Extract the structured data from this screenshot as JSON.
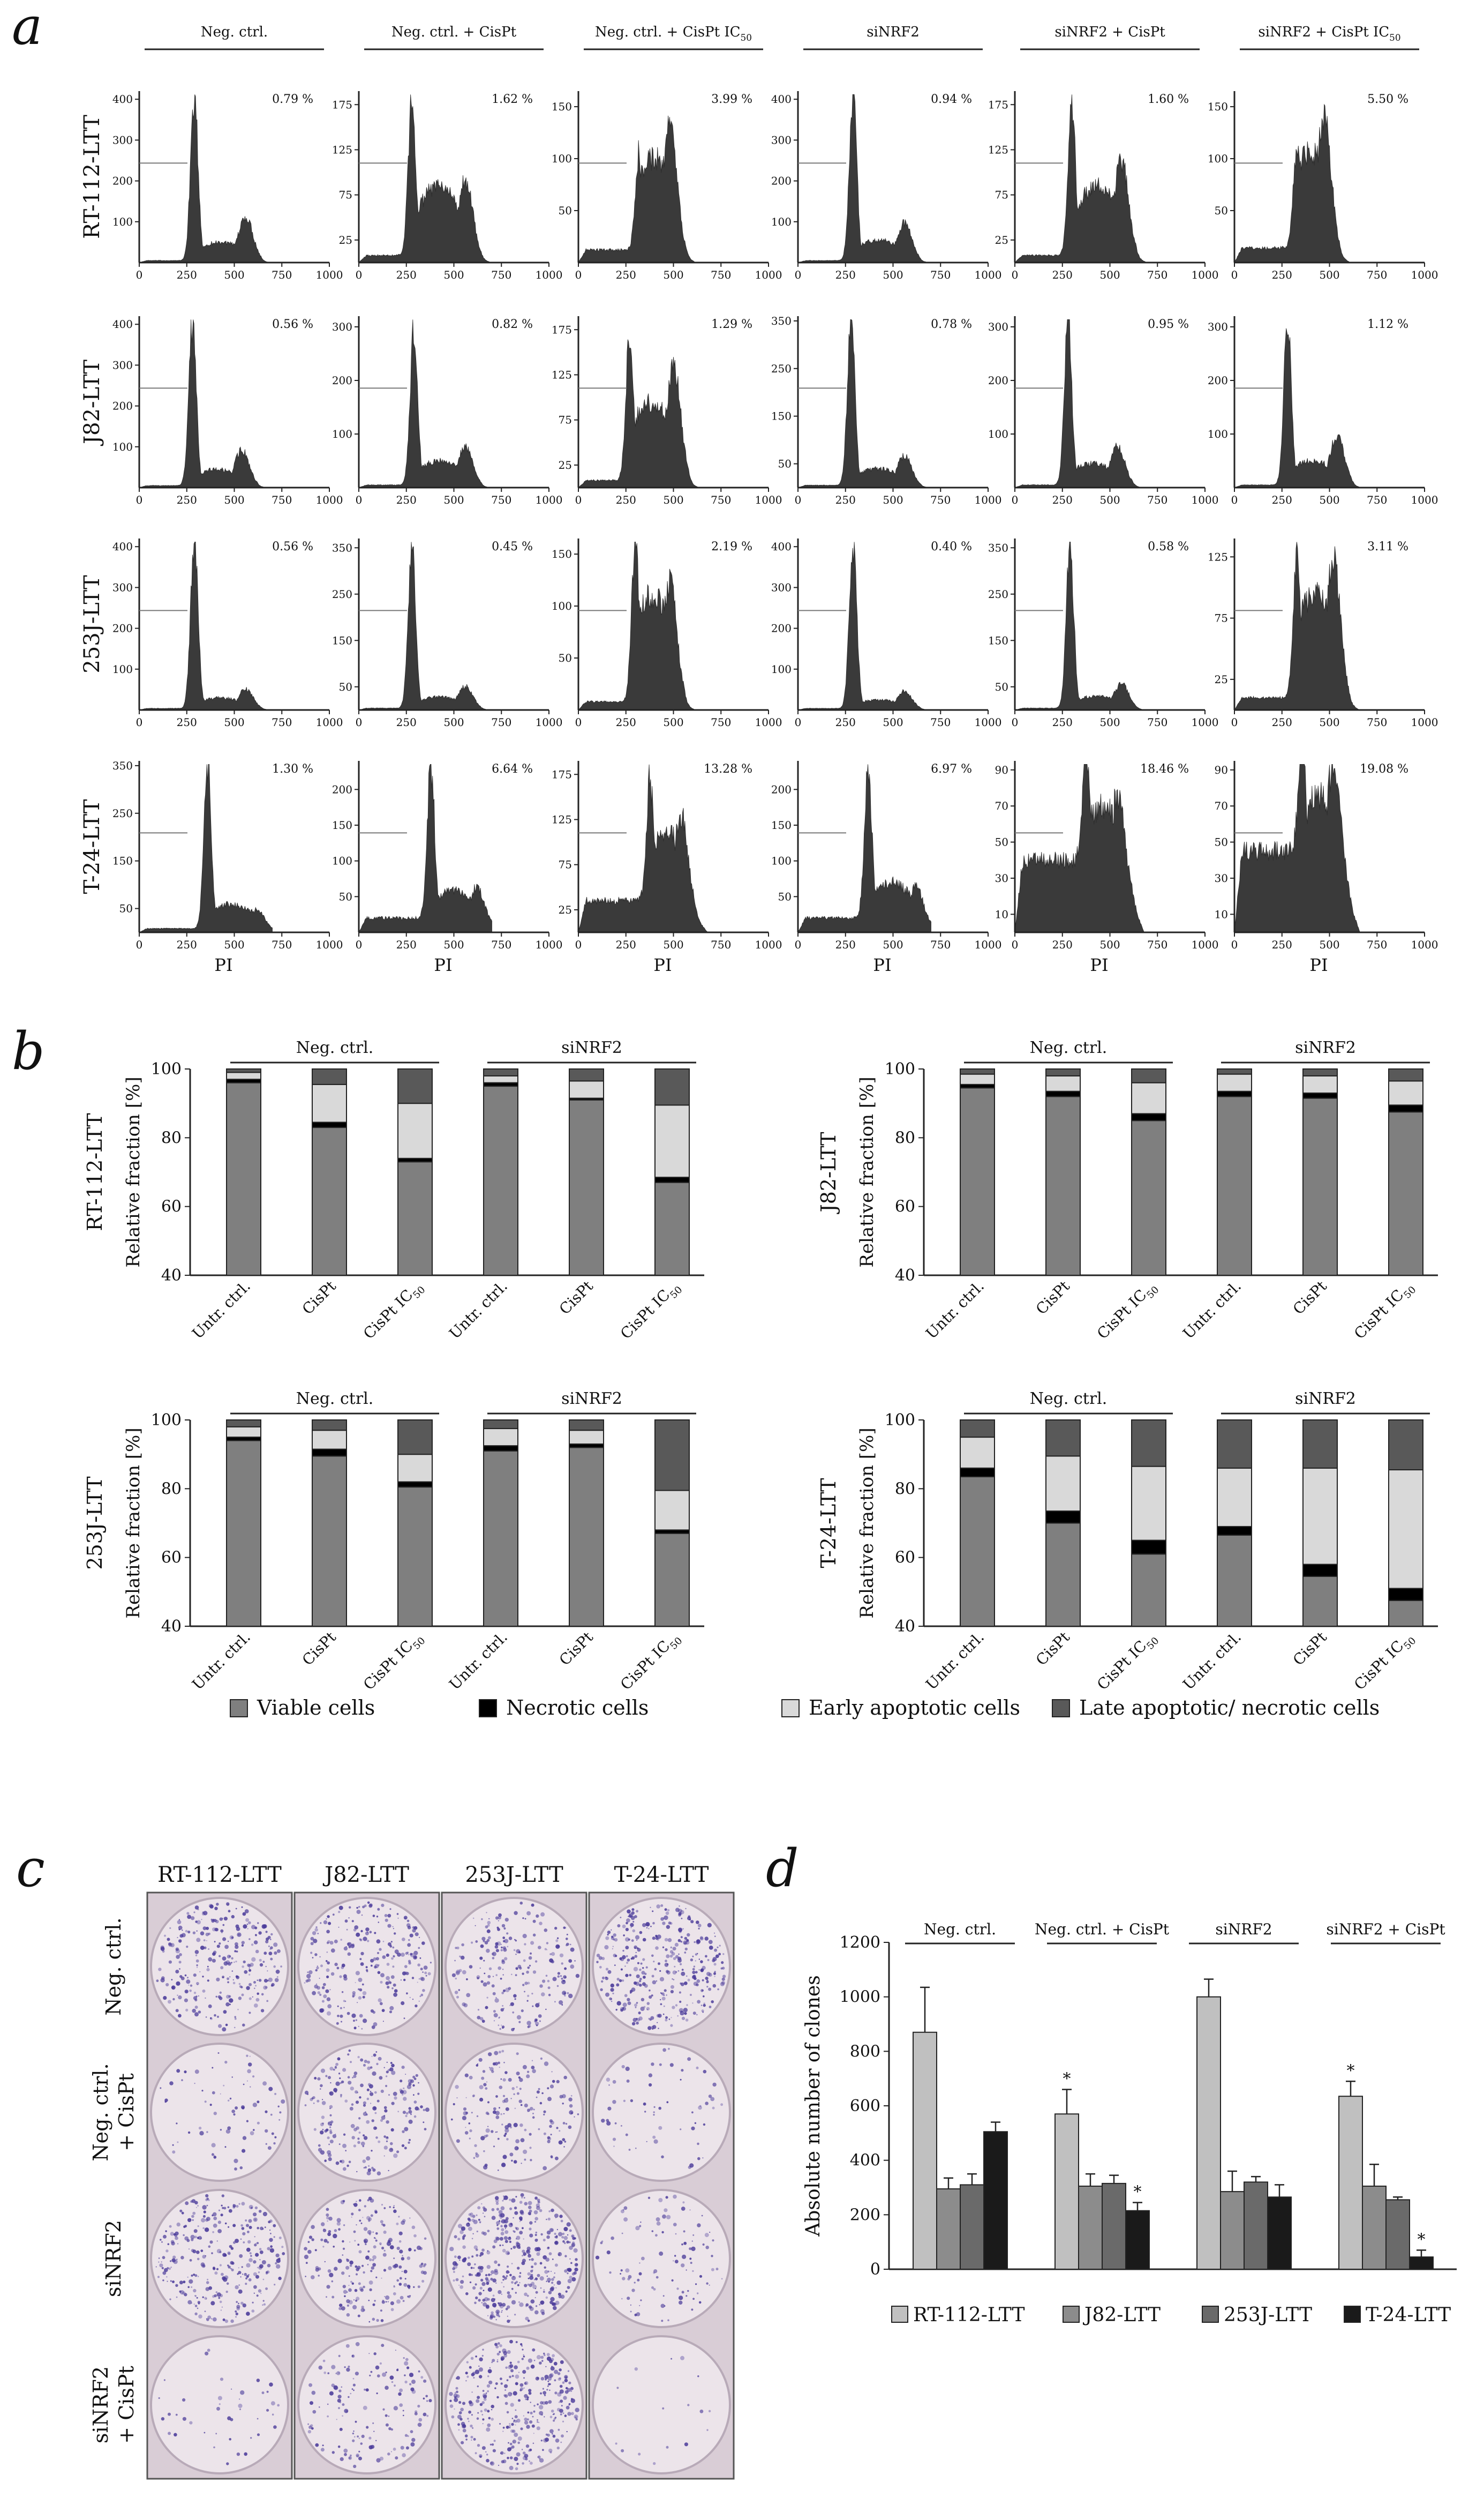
{
  "panel_a": {
    "letter": "a",
    "columns": [
      "Neg. ctrl.",
      "Neg. ctrl. + CisPt",
      "Neg. ctrl. + CisPt IC50",
      "siNRF2",
      "siNRF2 + CisPt",
      "siNRF2 + CisPt IC50"
    ],
    "rows": [
      "RT-112-LTT",
      "J82-LTT",
      "253J-LTT",
      "T-24-LTT"
    ],
    "x_ticks": [
      "0",
      "250",
      "500",
      "750",
      "1000"
    ],
    "x_label": "PI",
    "cells": [
      [
        {
          "pct": "0.79 %",
          "yticks": [
            "400",
            "300",
            "200",
            "100"
          ],
          "ymax": 420,
          "g1": 400,
          "g1pos": 290,
          "g2": 110,
          "g2pos": 560,
          "s": 50,
          "sub": 5
        },
        {
          "pct": "1.62 %",
          "yticks": [
            "175",
            "125",
            "75",
            "25"
          ],
          "ymax": 190,
          "g1": 175,
          "g1pos": 280,
          "g2": 90,
          "g2pos": 560,
          "s": 85,
          "sub": 8
        },
        {
          "pct": "3.99 %",
          "yticks": [
            "150",
            "100",
            "50"
          ],
          "ymax": 165,
          "g1": 95,
          "g1pos": 320,
          "g2": 125,
          "g2pos": 480,
          "s": 100,
          "sub": 12
        },
        {
          "pct": "0.94 %",
          "yticks": [
            "400",
            "300",
            "200",
            "100"
          ],
          "ymax": 420,
          "g1": 400,
          "g1pos": 290,
          "g2": 95,
          "g2pos": 560,
          "s": 55,
          "sub": 5
        },
        {
          "pct": "1.60 %",
          "yticks": [
            "175",
            "125",
            "75",
            "25"
          ],
          "ymax": 190,
          "g1": 175,
          "g1pos": 300,
          "g2": 110,
          "g2pos": 560,
          "s": 85,
          "sub": 8
        },
        {
          "pct": "5.50 %",
          "yticks": [
            "150",
            "100",
            "50"
          ],
          "ymax": 165,
          "g1": 100,
          "g1pos": 330,
          "g2": 135,
          "g2pos": 470,
          "s": 105,
          "sub": 14
        }
      ],
      [
        {
          "pct": "0.56 %",
          "yticks": [
            "400",
            "300",
            "200",
            "100"
          ],
          "ymax": 420,
          "g1": 405,
          "g1pos": 280,
          "g2": 90,
          "g2pos": 540,
          "s": 45,
          "sub": 5
        },
        {
          "pct": "0.82 %",
          "yticks": [
            "300",
            "200",
            "100"
          ],
          "ymax": 320,
          "g1": 295,
          "g1pos": 290,
          "g2": 75,
          "g2pos": 560,
          "s": 50,
          "sub": 5
        },
        {
          "pct": "1.29 %",
          "yticks": [
            "175",
            "125",
            "75",
            "25"
          ],
          "ymax": 190,
          "g1": 165,
          "g1pos": 270,
          "g2": 130,
          "g2pos": 500,
          "s": 95,
          "sub": 8
        },
        {
          "pct": "0.78 %",
          "yticks": [
            "350",
            "250",
            "150",
            "50"
          ],
          "ymax": 360,
          "g1": 345,
          "g1pos": 280,
          "g2": 65,
          "g2pos": 560,
          "s": 40,
          "sub": 5
        },
        {
          "pct": "0.95 %",
          "yticks": [
            "300",
            "200",
            "100"
          ],
          "ymax": 320,
          "g1": 310,
          "g1pos": 280,
          "g2": 75,
          "g2pos": 540,
          "s": 45,
          "sub": 5
        },
        {
          "pct": "1.12 %",
          "yticks": [
            "300",
            "200",
            "100"
          ],
          "ymax": 320,
          "g1": 305,
          "g1pos": 280,
          "g2": 95,
          "g2pos": 540,
          "s": 50,
          "sub": 5
        }
      ],
      [
        {
          "pct": "0.56 %",
          "yticks": [
            "400",
            "300",
            "200",
            "100"
          ],
          "ymax": 420,
          "g1": 405,
          "g1pos": 290,
          "g2": 50,
          "g2pos": 560,
          "s": 30,
          "sub": 4
        },
        {
          "pct": "0.45 %",
          "yticks": [
            "350",
            "250",
            "150",
            "50"
          ],
          "ymax": 370,
          "g1": 355,
          "g1pos": 280,
          "g2": 50,
          "g2pos": 560,
          "s": 28,
          "sub": 4
        },
        {
          "pct": "2.19 %",
          "yticks": [
            "150",
            "100",
            "50"
          ],
          "ymax": 165,
          "g1": 155,
          "g1pos": 300,
          "g2": 120,
          "g2pos": 480,
          "s": 110,
          "sub": 8
        },
        {
          "pct": "0.40 %",
          "yticks": [
            "400",
            "300",
            "200",
            "100"
          ],
          "ymax": 420,
          "g1": 405,
          "g1pos": 290,
          "g2": 45,
          "g2pos": 560,
          "s": 25,
          "sub": 4
        },
        {
          "pct": "0.58 %",
          "yticks": [
            "350",
            "250",
            "150",
            "50"
          ],
          "ymax": 370,
          "g1": 355,
          "g1pos": 290,
          "g2": 55,
          "g2pos": 560,
          "s": 30,
          "sub": 4
        },
        {
          "pct": "3.11 %",
          "yticks": [
            "125",
            "75",
            "25"
          ],
          "ymax": 140,
          "g1": 120,
          "g1pos": 330,
          "g2": 120,
          "g2pos": 520,
          "s": 95,
          "sub": 10
        }
      ],
      [
        {
          "pct": "1.30 %",
          "yticks": [
            "350",
            "250",
            "150",
            "50"
          ],
          "ymax": 360,
          "g1": 345,
          "g1pos": 360,
          "g2": 45,
          "g2pos": 620,
          "s": 60,
          "sub": 8
        },
        {
          "pct": "6.64 %",
          "yticks": [
            "200",
            "150",
            "100",
            "50"
          ],
          "ymax": 240,
          "g1": 220,
          "g1pos": 380,
          "g2": 55,
          "g2pos": 620,
          "s": 60,
          "sub": 20
        },
        {
          "pct": "13.28 %",
          "yticks": [
            "175",
            "125",
            "75",
            "25"
          ],
          "ymax": 190,
          "g1": 145,
          "g1pos": 380,
          "g2": 115,
          "g2pos": 540,
          "s": 110,
          "sub": 35
        },
        {
          "pct": "6.97 %",
          "yticks": [
            "200",
            "150",
            "100",
            "50"
          ],
          "ymax": 240,
          "g1": 220,
          "g1pos": 370,
          "g2": 55,
          "g2pos": 620,
          "s": 70,
          "sub": 20
        },
        {
          "pct": "18.46 %",
          "yticks": [
            "90",
            "70",
            "50",
            "30",
            "10"
          ],
          "ymax": 95,
          "g1": 85,
          "g1pos": 380,
          "g2": 60,
          "g2pos": 540,
          "s": 70,
          "sub": 40
        },
        {
          "pct": "19.08 %",
          "yticks": [
            "90",
            "70",
            "50",
            "30",
            "10"
          ],
          "ymax": 95,
          "g1": 85,
          "g1pos": 360,
          "g2": 75,
          "g2pos": 520,
          "s": 75,
          "sub": 45
        }
      ]
    ]
  },
  "panel_b": {
    "letter": "b",
    "group_labels": [
      "Neg. ctrl.",
      "siNRF2"
    ],
    "categories": [
      "Untr. ctrl.",
      "CisPt",
      "CisPt IC50"
    ],
    "ylabel": "Relative fraction [%]",
    "ylim": [
      40,
      100
    ],
    "yticks": [
      "40",
      "60",
      "80",
      "100"
    ],
    "legend": [
      {
        "label": "Viable cells",
        "color": "#7f7f7f"
      },
      {
        "label": "Necrotic cells",
        "color": "#000000"
      },
      {
        "label": "Early apoptotic cells",
        "color": "#d9d9d9"
      },
      {
        "label": "Late apoptotic/ necrotic cells",
        "color": "#595959"
      }
    ],
    "charts": [
      {
        "title": "RT-112-LTT",
        "viable": [
          96,
          83,
          73,
          95,
          91,
          67
        ],
        "necrotic": [
          1,
          1.5,
          1,
          1,
          0.5,
          1.5
        ],
        "early": [
          2,
          11,
          16,
          2,
          5,
          21
        ],
        "late": [
          1,
          4.5,
          10,
          2,
          3.5,
          10.5
        ]
      },
      {
        "title": "J82-LTT",
        "viable": [
          94.5,
          92,
          85,
          92,
          91.5,
          87.5
        ],
        "necrotic": [
          1,
          1.5,
          2,
          1.5,
          1.5,
          2
        ],
        "early": [
          3,
          4.5,
          9,
          5,
          5,
          7
        ],
        "late": [
          1.5,
          2,
          4,
          1.5,
          2,
          3.5
        ]
      },
      {
        "title": "253J-LTT",
        "viable": [
          94,
          89.5,
          80.5,
          91,
          92,
          67
        ],
        "necrotic": [
          1,
          2,
          1.5,
          1.5,
          1,
          1
        ],
        "early": [
          3,
          5.5,
          8,
          5,
          4,
          11.5
        ],
        "late": [
          2,
          3,
          10,
          2.5,
          3,
          20.5
        ]
      },
      {
        "title": "T-24-LTT",
        "viable": [
          83.5,
          70,
          61,
          66.5,
          54.5,
          47.5
        ],
        "necrotic": [
          2.5,
          3.5,
          4,
          2.5,
          3.5,
          3.5
        ],
        "early": [
          9,
          16,
          21.5,
          17,
          28,
          34.5
        ],
        "late": [
          5,
          10.5,
          13.5,
          14,
          14,
          14.5
        ]
      }
    ]
  },
  "panel_c": {
    "letter": "c",
    "columns": [
      "RT-112-LTT",
      "J82-LTT",
      "253J-LTT",
      "T-24-LTT"
    ],
    "rows": [
      [
        "Neg. ctrl."
      ],
      [
        "Neg. ctrl.",
        "+ CisPt"
      ],
      [
        "siNRF2"
      ],
      [
        "siNRF2",
        "+ CisPt"
      ]
    ],
    "density": [
      [
        0.55,
        0.5,
        0.45,
        0.7
      ],
      [
        0.15,
        0.45,
        0.35,
        0.12
      ],
      [
        0.6,
        0.45,
        0.85,
        0.2
      ],
      [
        0.08,
        0.3,
        0.7,
        0.03
      ]
    ]
  },
  "panel_d": {
    "letter": "d",
    "chart_data": {
      "type": "bar",
      "groups": [
        "Neg. ctrl.",
        "Neg. ctrl. + CisPt",
        "siNRF2",
        "siNRF2 + CisPt"
      ],
      "ylabel": "Absolute number of clones",
      "ylim": [
        0,
        1200
      ],
      "yticks": [
        "0",
        "200",
        "400",
        "600",
        "800",
        "1000",
        "1200"
      ],
      "series": [
        {
          "name": "RT-112-LTT",
          "color": "#c0c0c0",
          "values": [
            870,
            570,
            1000,
            635
          ],
          "errors": [
            165,
            90,
            65,
            55
          ],
          "stars": [
            "",
            "*",
            "",
            "*"
          ]
        },
        {
          "name": "J82-LTT",
          "color": "#8c8c8c",
          "values": [
            295,
            305,
            285,
            305
          ],
          "errors": [
            40,
            45,
            75,
            80
          ],
          "stars": [
            "",
            "",
            "",
            ""
          ]
        },
        {
          "name": "253J-LTT",
          "color": "#6a6a6a",
          "values": [
            310,
            315,
            320,
            255
          ],
          "errors": [
            40,
            30,
            20,
            10
          ],
          "stars": [
            "",
            "",
            "",
            ""
          ]
        },
        {
          "name": "T-24-LTT",
          "color": "#1a1a1a",
          "values": [
            505,
            215,
            265,
            45
          ],
          "errors": [
            35,
            30,
            45,
            25
          ],
          "stars": [
            "",
            "*",
            "",
            "*"
          ]
        }
      ]
    }
  }
}
